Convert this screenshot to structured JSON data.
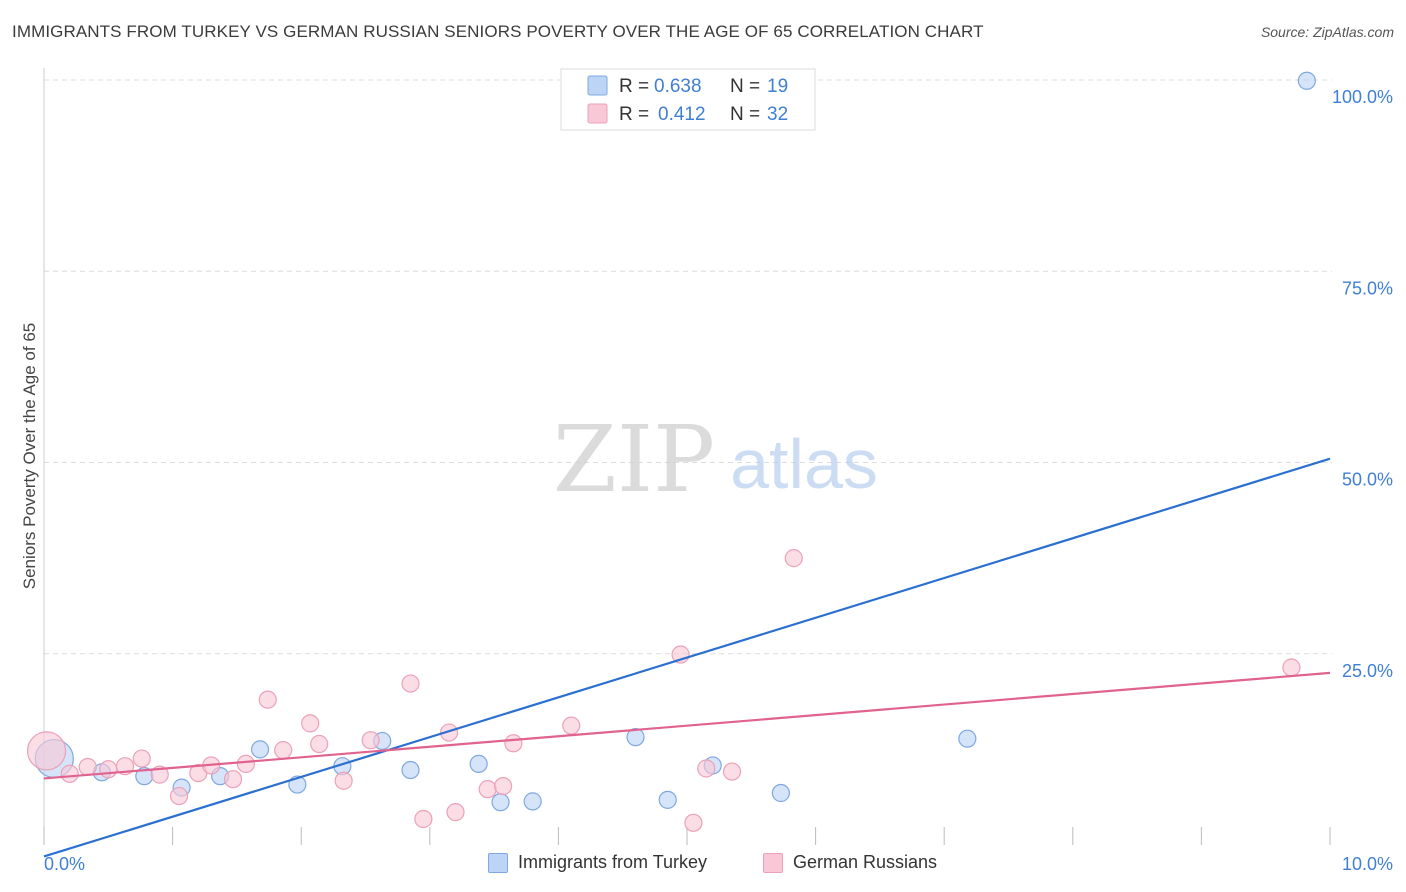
{
  "title": "IMMIGRANTS FROM TURKEY VS GERMAN RUSSIAN SENIORS POVERTY OVER THE AGE OF 65 CORRELATION CHART",
  "source": "Source: ZipAtlas.com",
  "watermark": {
    "zip": "ZIP",
    "atlas": "atlas"
  },
  "colors": {
    "blue_fill": "#bcd4f5",
    "blue_stroke": "#7fa8e0",
    "blue_line": "#2b70d0",
    "pink_fill": "#f8c8d6",
    "pink_stroke": "#eba1b8",
    "pink_line": "#e0628e",
    "tick_label": "#3f7fd4",
    "grid": "#dcdcdc"
  },
  "stats_legend": [
    {
      "r_label": "R =",
      "r_value": "0.638",
      "n_label": "N =",
      "n_value": "19",
      "series": "blue"
    },
    {
      "r_label": "R =",
      "r_value": "0.412",
      "n_label": "N =",
      "n_value": "32",
      "series": "pink"
    }
  ],
  "chart_data": {
    "type": "scatter",
    "title": "IMMIGRANTS FROM TURKEY VS GERMAN RUSSIAN SENIORS POVERTY OVER THE AGE OF 65 CORRELATION CHART",
    "xlabel": "",
    "ylabel": "Seniors Poverty Over the Age of 65",
    "xlim": [
      0,
      10
    ],
    "ylim": [
      0,
      100
    ],
    "x_tick_labels": [
      "0.0%",
      "10.0%"
    ],
    "y_ticks": [
      25,
      50,
      75,
      100
    ],
    "y_tick_labels": [
      "25.0%",
      "50.0%",
      "75.0%",
      "100.0%"
    ],
    "series": [
      {
        "name": "Immigrants from Turkey",
        "color": "blue",
        "points": [
          {
            "x": 0.08,
            "y": 11.3,
            "big": true
          },
          {
            "x": 0.45,
            "y": 9.5
          },
          {
            "x": 0.78,
            "y": 9.0
          },
          {
            "x": 1.07,
            "y": 7.5
          },
          {
            "x": 1.37,
            "y": 9.0
          },
          {
            "x": 1.68,
            "y": 12.5
          },
          {
            "x": 1.97,
            "y": 7.9
          },
          {
            "x": 2.32,
            "y": 10.3
          },
          {
            "x": 2.63,
            "y": 13.6
          },
          {
            "x": 2.85,
            "y": 9.8
          },
          {
            "x": 3.38,
            "y": 10.6
          },
          {
            "x": 3.55,
            "y": 5.6
          },
          {
            "x": 3.8,
            "y": 5.7
          },
          {
            "x": 4.6,
            "y": 14.1
          },
          {
            "x": 4.85,
            "y": 5.9
          },
          {
            "x": 5.2,
            "y": 10.4
          },
          {
            "x": 5.73,
            "y": 6.8
          },
          {
            "x": 7.18,
            "y": 13.9
          },
          {
            "x": 9.82,
            "y": 99.9
          }
        ],
        "trend": {
          "x1": 0,
          "y1": -1.5,
          "x2": 10,
          "y2": 50.5
        }
      },
      {
        "name": "German Russians",
        "color": "pink",
        "points": [
          {
            "x": 0.02,
            "y": 12.3,
            "big": true
          },
          {
            "x": 0.2,
            "y": 9.3
          },
          {
            "x": 0.34,
            "y": 10.2
          },
          {
            "x": 0.5,
            "y": 9.9
          },
          {
            "x": 0.63,
            "y": 10.3
          },
          {
            "x": 0.76,
            "y": 11.3
          },
          {
            "x": 0.9,
            "y": 9.2
          },
          {
            "x": 1.05,
            "y": 6.4
          },
          {
            "x": 1.2,
            "y": 9.4
          },
          {
            "x": 1.3,
            "y": 10.4
          },
          {
            "x": 1.47,
            "y": 8.6
          },
          {
            "x": 1.57,
            "y": 10.6
          },
          {
            "x": 1.74,
            "y": 19.0
          },
          {
            "x": 1.86,
            "y": 12.4
          },
          {
            "x": 2.07,
            "y": 15.9
          },
          {
            "x": 2.14,
            "y": 13.2
          },
          {
            "x": 2.33,
            "y": 8.4
          },
          {
            "x": 2.54,
            "y": 13.7
          },
          {
            "x": 2.85,
            "y": 21.1
          },
          {
            "x": 2.95,
            "y": 3.4
          },
          {
            "x": 3.15,
            "y": 14.7
          },
          {
            "x": 3.2,
            "y": 4.3
          },
          {
            "x": 3.45,
            "y": 7.3
          },
          {
            "x": 3.57,
            "y": 7.7
          },
          {
            "x": 3.65,
            "y": 13.3
          },
          {
            "x": 4.1,
            "y": 15.6
          },
          {
            "x": 4.95,
            "y": 24.9
          },
          {
            "x": 5.05,
            "y": 2.9
          },
          {
            "x": 5.15,
            "y": 10.0
          },
          {
            "x": 5.35,
            "y": 9.6
          },
          {
            "x": 5.83,
            "y": 37.5
          },
          {
            "x": 9.7,
            "y": 23.2
          }
        ],
        "trend": {
          "x1": 0,
          "y1": 8.7,
          "x2": 10,
          "y2": 22.5
        }
      }
    ]
  }
}
